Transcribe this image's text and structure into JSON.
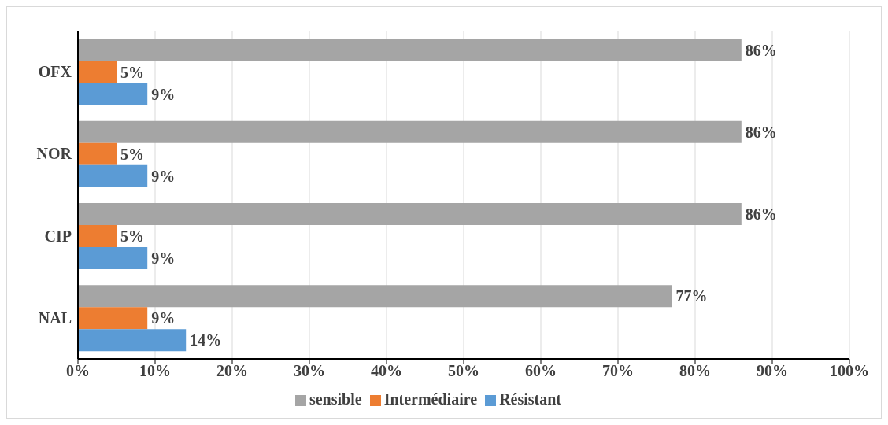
{
  "chart_data": {
    "type": "bar",
    "orientation": "horizontal",
    "categories": [
      "OFX",
      "NOR",
      "CIP",
      "NAL"
    ],
    "series": [
      {
        "name": "sensible",
        "color": "#a5a5a5",
        "values": [
          86,
          86,
          86,
          77
        ],
        "value_labels": [
          "86%",
          "86%",
          "86%",
          "77%"
        ]
      },
      {
        "name": "Intermédiaire",
        "color": "#ed7d31",
        "values": [
          5,
          5,
          5,
          9
        ],
        "value_labels": [
          "5%",
          "5%",
          "5%",
          "9%"
        ]
      },
      {
        "name": "Résistant",
        "color": "#5b9bd5",
        "values": [
          9,
          9,
          9,
          14
        ],
        "value_labels": [
          "9%",
          "9%",
          "9%",
          "14%"
        ]
      }
    ],
    "xlim": [
      0,
      100
    ],
    "xticks": [
      {
        "value": 0,
        "label": "0%"
      },
      {
        "value": 10,
        "label": "10%"
      },
      {
        "value": 20,
        "label": "20%"
      },
      {
        "value": 30,
        "label": "30%"
      },
      {
        "value": 40,
        "label": "40%"
      },
      {
        "value": 50,
        "label": "50%"
      },
      {
        "value": 60,
        "label": "60%"
      },
      {
        "value": 70,
        "label": "70%"
      },
      {
        "value": 80,
        "label": "80%"
      },
      {
        "value": 90,
        "label": "90%"
      },
      {
        "value": 100,
        "label": "100%"
      }
    ],
    "grid": "x",
    "legend": "bottom"
  }
}
